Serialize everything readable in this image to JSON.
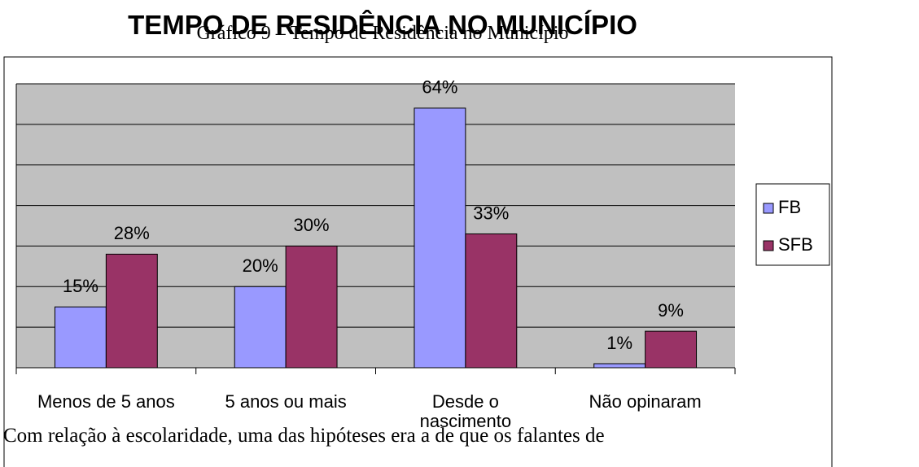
{
  "chart_data": {
    "type": "bar",
    "title": "TEMPO DE RESIDÊNCIA NO MUNICÍPIO",
    "categories": [
      "Menos de 5 anos",
      "5 anos ou mais",
      "Desde o nascimento",
      "Não opinaram"
    ],
    "series": [
      {
        "name": "FB",
        "color": "#9999ff",
        "values": [
          15,
          20,
          64,
          1
        ],
        "value_labels": [
          "15%",
          "20%",
          "64%",
          "1%"
        ]
      },
      {
        "name": "SFB",
        "color": "#993366",
        "values": [
          28,
          30,
          33,
          9
        ],
        "value_labels": [
          "28%",
          "30%",
          "33%",
          "9%"
        ]
      }
    ],
    "ylim": [
      0,
      70
    ],
    "yticks": [
      0,
      10,
      20,
      30,
      40,
      50,
      60,
      70
    ],
    "grid": true,
    "legend": "right"
  },
  "caption": "Gráfico 9 – Tempo de Residência no Município",
  "body_text": "Com relação à escolaridade, uma das hipóteses era a de que os falantes de"
}
